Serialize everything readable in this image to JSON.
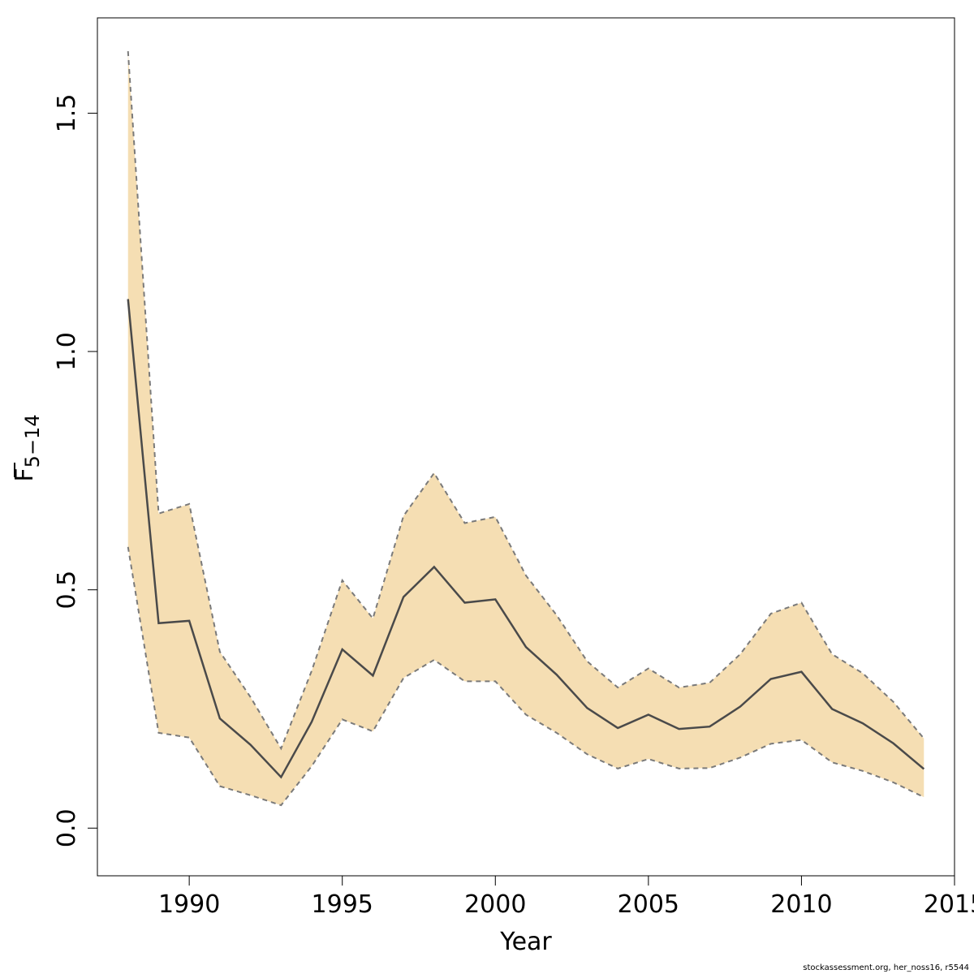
{
  "chart_data": {
    "type": "line",
    "title": "",
    "xlabel": "Year",
    "ylabel": {
      "main": "F",
      "subscript": "5−14",
      "overline": true
    },
    "xlim": [
      1987,
      2015
    ],
    "ylim": [
      -0.1,
      1.7
    ],
    "xticks": [
      1990,
      1995,
      2000,
      2005,
      2010,
      2015
    ],
    "yticks": [
      0.0,
      0.5,
      1.0,
      1.5
    ],
    "xtick_labels": [
      "1990",
      "1995",
      "2000",
      "2005",
      "2010",
      "2015"
    ],
    "ytick_labels": [
      "0.0",
      "0.5",
      "1.0",
      "1.5"
    ],
    "grid": false,
    "legend": "none",
    "colors": {
      "band": "#f5deb3",
      "line": "#4a4a4a",
      "bound": "#7a7a7a",
      "frame": "#000000"
    },
    "x": [
      1988,
      1989,
      1990,
      1991,
      1992,
      1993,
      1994,
      1995,
      1996,
      1997,
      1998,
      1999,
      2000,
      2001,
      2002,
      2003,
      2004,
      2005,
      2006,
      2007,
      2008,
      2009,
      2010,
      2011,
      2012,
      2013,
      2014
    ],
    "series": [
      {
        "role": "estimate",
        "values": [
          1.11,
          0.43,
          0.435,
          0.23,
          0.175,
          0.107,
          0.223,
          0.375,
          0.32,
          0.485,
          0.548,
          0.473,
          0.48,
          0.38,
          0.322,
          0.252,
          0.21,
          0.238,
          0.208,
          0.213,
          0.255,
          0.313,
          0.328,
          0.25,
          0.22,
          0.178,
          0.124
        ]
      },
      {
        "role": "upper",
        "values": [
          1.63,
          0.66,
          0.68,
          0.37,
          0.275,
          0.167,
          0.33,
          0.52,
          0.44,
          0.655,
          0.745,
          0.64,
          0.653,
          0.53,
          0.447,
          0.35,
          0.295,
          0.335,
          0.295,
          0.305,
          0.365,
          0.45,
          0.473,
          0.365,
          0.325,
          0.265,
          0.188
        ]
      },
      {
        "role": "lower",
        "values": [
          0.59,
          0.2,
          0.19,
          0.088,
          0.069,
          0.048,
          0.13,
          0.228,
          0.203,
          0.315,
          0.353,
          0.308,
          0.308,
          0.238,
          0.2,
          0.155,
          0.125,
          0.145,
          0.125,
          0.126,
          0.148,
          0.177,
          0.185,
          0.138,
          0.12,
          0.096,
          0.065
        ]
      }
    ]
  },
  "footer": "stockassessment.org, her_noss16, r5544"
}
